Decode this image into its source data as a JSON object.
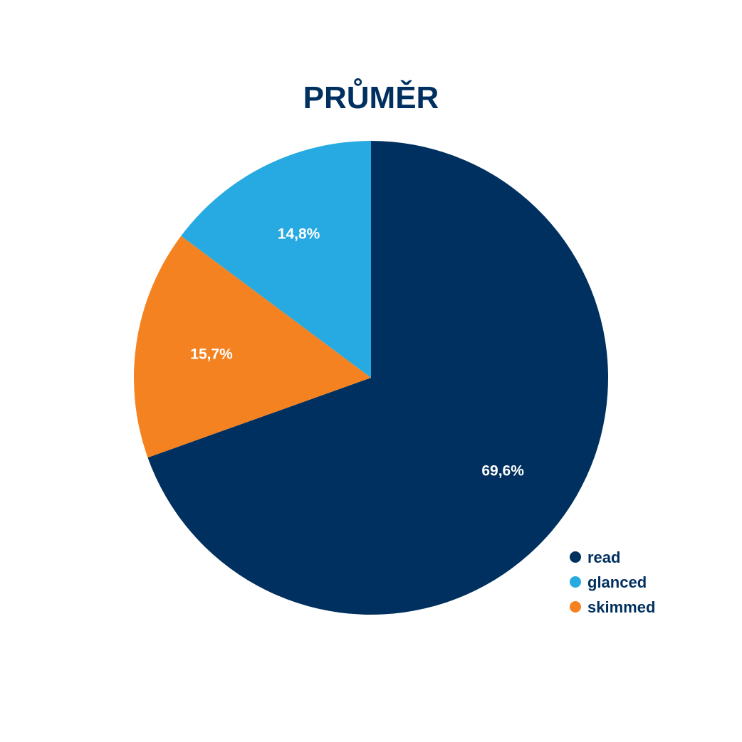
{
  "chart_data": {
    "type": "pie",
    "title": "PRŮMĚR",
    "title_color": "#00305f",
    "legend_position": "bottom-right",
    "legend_text_color": "#00305f",
    "slices": [
      {
        "name": "read",
        "value": 69.6,
        "label": "69,6%",
        "color": "#00305f"
      },
      {
        "name": "skimmed",
        "value": 15.7,
        "label": "15,7%",
        "color": "#f58220"
      },
      {
        "name": "glanced",
        "value": 14.8,
        "label": "14,8%",
        "color": "#27aae1"
      }
    ],
    "legend": [
      {
        "name": "read",
        "color": "#00305f"
      },
      {
        "name": "glanced",
        "color": "#27aae1"
      },
      {
        "name": "skimmed",
        "color": "#f58220"
      }
    ]
  }
}
